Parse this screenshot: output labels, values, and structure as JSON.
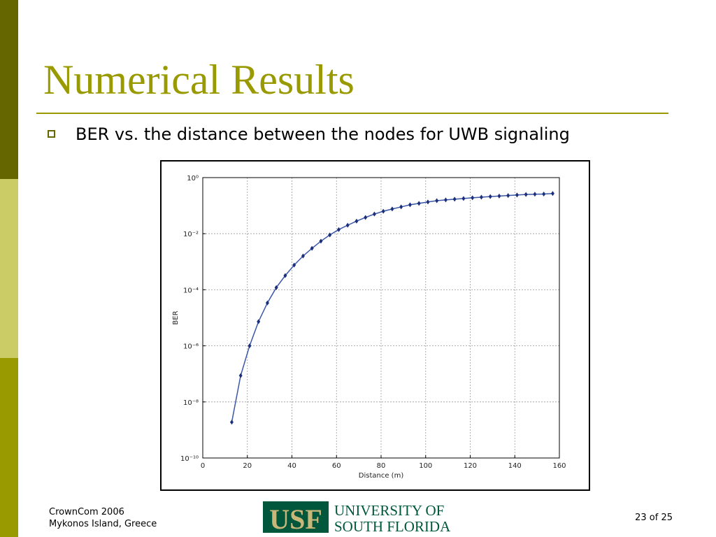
{
  "slide": {
    "title": "Numerical Results",
    "bullet": "BER vs. the distance between the nodes for UWB signaling",
    "footer": {
      "line1": "CrownCom 2006",
      "line2": "Mykonos Island, Greece",
      "page": "23 of 25"
    },
    "logo": {
      "mark": "USF",
      "line1": "UNIVERSITY OF",
      "line2": "SOUTH FLORIDA"
    }
  },
  "chart_data": {
    "type": "line",
    "xlabel": "Distance (m)",
    "ylabel": "BER",
    "x": [
      13,
      17,
      21,
      25,
      29,
      33,
      37,
      41,
      45,
      49,
      53,
      57,
      61,
      65,
      69,
      73,
      77,
      81,
      85,
      89,
      93,
      97,
      101,
      105,
      109,
      113,
      117,
      121,
      125,
      129,
      133,
      137,
      141,
      145,
      149,
      153,
      157
    ],
    "values": [
      1.9e-09,
      8.7e-08,
      1e-06,
      7.3e-06,
      3.4e-05,
      0.00012,
      0.00032,
      0.00076,
      0.0016,
      0.003,
      0.0054,
      0.009,
      0.014,
      0.02,
      0.028,
      0.038,
      0.05,
      0.063,
      0.076,
      0.09,
      0.107,
      0.12,
      0.135,
      0.15,
      0.16,
      0.17,
      0.18,
      0.19,
      0.2,
      0.21,
      0.22,
      0.23,
      0.24,
      0.25,
      0.255,
      0.26,
      0.27
    ],
    "color": "#3a56a8",
    "marker_color": "#1c2f7a",
    "xlim": [
      0,
      160
    ],
    "xticks": [
      0,
      20,
      40,
      60,
      80,
      100,
      120,
      140,
      160
    ],
    "ylim": [
      1e-10,
      1
    ],
    "ylog": true,
    "yticks": [
      {
        "value": 1e-10,
        "label": "10⁻¹⁰"
      },
      {
        "value": 1e-08,
        "label": "10⁻⁸"
      },
      {
        "value": 1e-06,
        "label": "10⁻⁶"
      },
      {
        "value": 0.0001,
        "label": "10⁻⁴"
      },
      {
        "value": 0.01,
        "label": "10⁻²"
      },
      {
        "value": 1,
        "label": "10⁰"
      }
    ],
    "grid": true
  }
}
